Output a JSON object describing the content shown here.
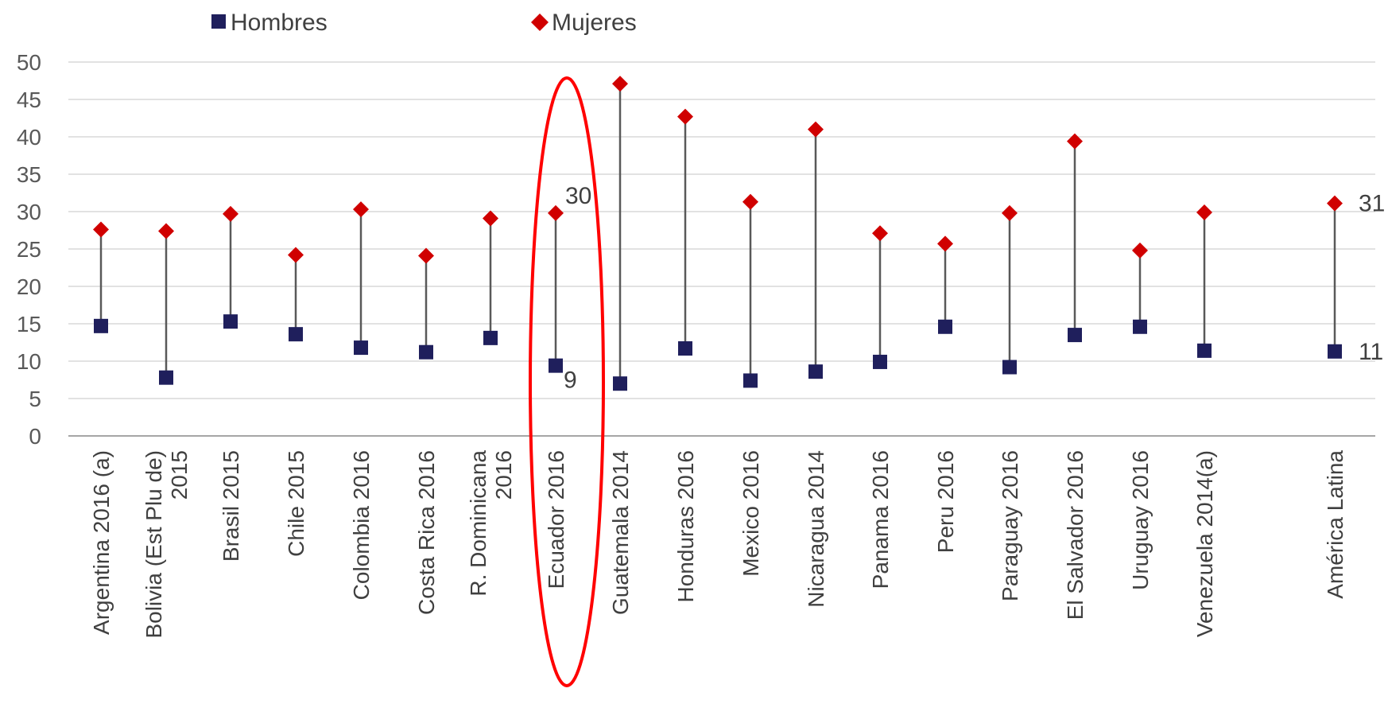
{
  "chart_data": {
    "type": "scatter",
    "categories": [
      [
        "Argentina 2016 (a)"
      ],
      [
        "Bolivia (Est Plu de)",
        "2015"
      ],
      [
        "Brasil 2015"
      ],
      [
        "Chile 2015"
      ],
      [
        "Colombia 2016"
      ],
      [
        "Costa Rica 2016"
      ],
      [
        "R. Dominicana",
        "2016"
      ],
      [
        "Ecuador 2016"
      ],
      [
        "Guatemala 2014"
      ],
      [
        "Honduras 2016"
      ],
      [
        "Mexico 2016"
      ],
      [
        "Nicaragua 2014"
      ],
      [
        "Panama 2016"
      ],
      [
        "Peru 2016"
      ],
      [
        "Paraguay 2016"
      ],
      [
        "El Salvador 2016"
      ],
      [
        "Uruguay 2016"
      ],
      [
        "Venezuela 2014(a)"
      ],
      [
        "América Latina"
      ]
    ],
    "series": [
      {
        "name": "Hombres",
        "color": "#1F1F5C",
        "marker": "square",
        "values": [
          14.7,
          7.8,
          15.3,
          13.6,
          11.8,
          11.2,
          13.1,
          9.4,
          7.0,
          11.7,
          7.4,
          8.6,
          9.9,
          14.6,
          9.2,
          13.5,
          14.6,
          11.4,
          11.3
        ]
      },
      {
        "name": "Mujeres",
        "color": "#D00000",
        "marker": "diamond",
        "values": [
          27.6,
          27.4,
          29.7,
          24.2,
          30.3,
          24.1,
          29.1,
          29.8,
          47.1,
          42.7,
          31.3,
          41.0,
          27.1,
          25.7,
          29.8,
          39.4,
          24.8,
          29.9,
          31.1
        ]
      }
    ],
    "data_labels": [
      {
        "category_index": 7,
        "series": "Mujeres",
        "text": "30"
      },
      {
        "category_index": 7,
        "series": "Hombres",
        "text": "9"
      },
      {
        "category_index": 18,
        "series": "Mujeres",
        "text": "31"
      },
      {
        "category_index": 18,
        "series": "Hombres",
        "text": "11"
      }
    ],
    "yticks": [
      "0",
      "5",
      "10",
      "15",
      "20",
      "25",
      "30",
      "35",
      "40",
      "45",
      "50"
    ],
    "ylim": [
      0,
      50
    ],
    "grid": true,
    "legend_position": "top",
    "highlight": {
      "category_index": 7,
      "shape": "ellipse",
      "color": "#FF0000"
    },
    "title": "",
    "xlabel": "",
    "ylabel": ""
  }
}
